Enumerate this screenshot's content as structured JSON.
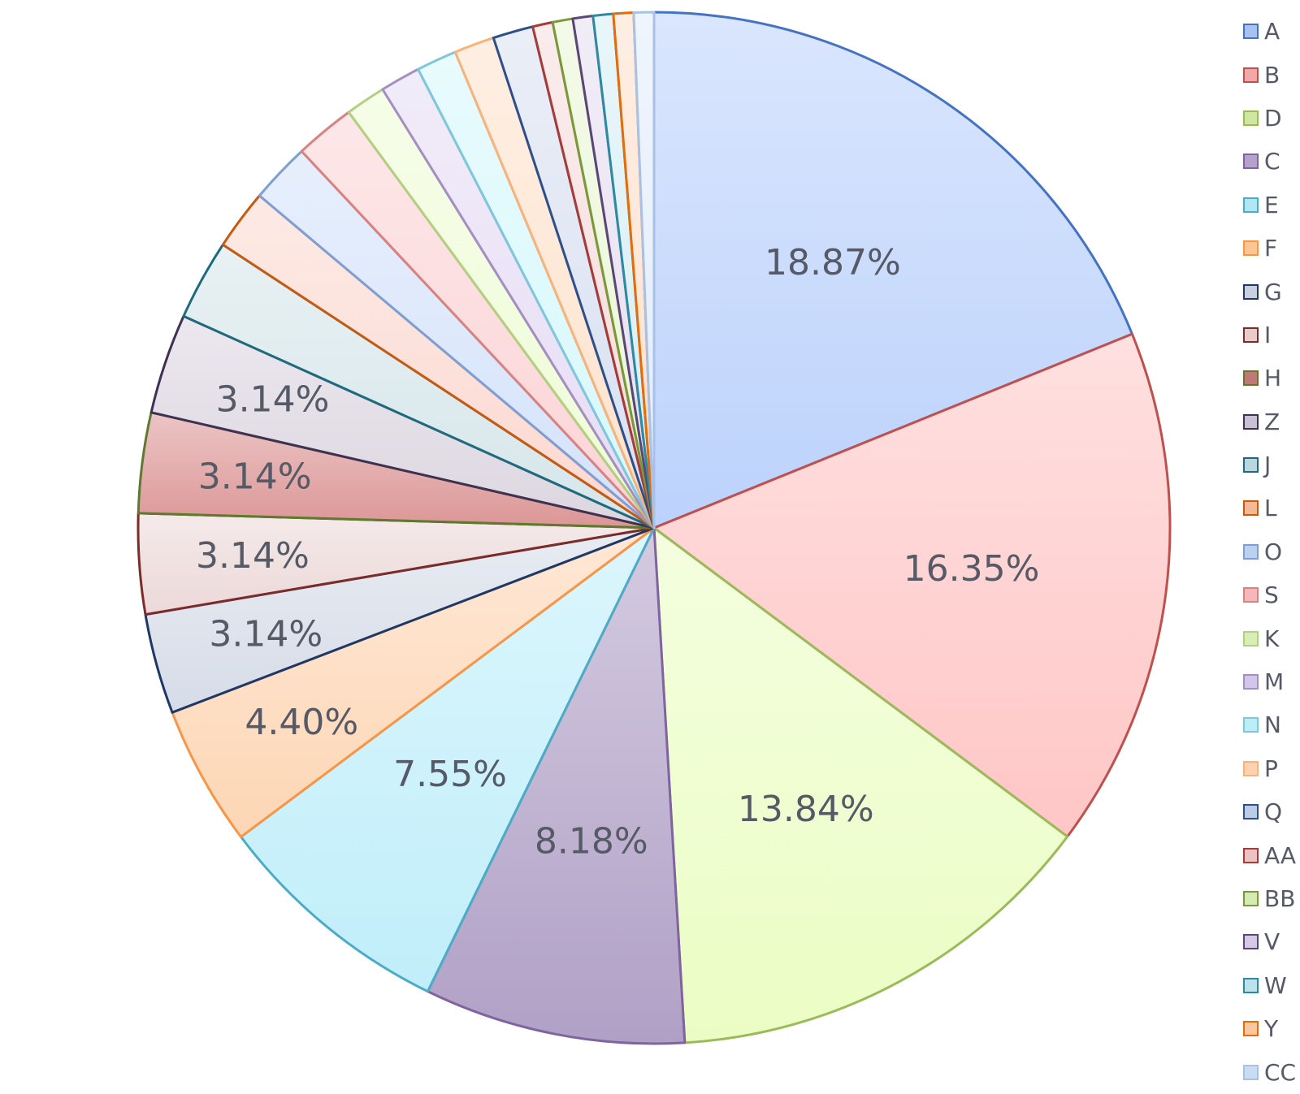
{
  "chart_data": {
    "type": "pie",
    "title": "",
    "legend_position": "right",
    "categories": [
      "A",
      "B",
      "D",
      "C",
      "E",
      "F",
      "G",
      "I",
      "H",
      "Z",
      "J",
      "L",
      "O",
      "S",
      "K",
      "M",
      "N",
      "P",
      "Q",
      "AA",
      "BB",
      "V",
      "W",
      "Y",
      "CC"
    ],
    "values": [
      18.87,
      16.35,
      13.84,
      8.18,
      7.55,
      4.4,
      3.14,
      3.14,
      3.14,
      3.14,
      2.52,
      1.89,
      1.89,
      1.89,
      1.26,
      1.26,
      1.26,
      1.26,
      1.26,
      0.63,
      0.63,
      0.63,
      0.63,
      0.63,
      0.63
    ],
    "labels": [
      "18.87%",
      "16.35%",
      "13.84%",
      "8.18%",
      "7.55%",
      "4.40%",
      "3.14%",
      "3.14%",
      "3.14%",
      "3.14%",
      "",
      "",
      "",
      "",
      "",
      "",
      "",
      "",
      "",
      "",
      "",
      "",
      "",
      "",
      ""
    ],
    "colors": [
      "#4472c4",
      "#c0504d",
      "#9bbb59",
      "#8064a2",
      "#4bacc6",
      "#f79646",
      "#1f3864",
      "#7b2c2a",
      "#5e7a2e",
      "#3f3151",
      "#1f6b7e",
      "#c55a11",
      "#7f9fd4",
      "#d9827f",
      "#b3cf80",
      "#a48fc3",
      "#7fc7da",
      "#f9b27a",
      "#2e4f8c",
      "#a83a37",
      "#7a9a3a",
      "#5b4679",
      "#2e8aa2",
      "#e46c0a",
      "#a9c1e6"
    ],
    "fills": [
      "#bcd2fc",
      "#ffc6c6",
      "#ebfdc4",
      "#b0a0c6",
      "#c0eefa",
      "#fdd6b4",
      "#d6dce8",
      "#ecd8d8",
      "#dc9696",
      "#dcd6e0",
      "#d6e6ea",
      "#fcd8d0",
      "#d4e2fa",
      "#fcd4d6",
      "#eefcd6",
      "#e6dcf4",
      "#d6f8fc",
      "#fde2cc",
      "#d8e0f0",
      "#f6dcdc",
      "#eaf6d6",
      "#e6dff0",
      "#d6eef4",
      "#fde0cc",
      "#e2ecfa"
    ],
    "legend_fills": [
      "#a6c2f0",
      "#f2a8a6",
      "#cfe6a0",
      "#b4a2cc",
      "#b0e6f2",
      "#fcc692",
      "#c8d0e0",
      "#e8cccc",
      "#bf7a78",
      "#c8c0d4",
      "#bcd6de",
      "#f6b894",
      "#bcd0f0",
      "#f4b8ba",
      "#d8eeb4",
      "#d2c6ea",
      "#bceef6",
      "#fcd2b0",
      "#bccce6",
      "#ecc2c2",
      "#d6eab4",
      "#d4cae6",
      "#bce2ec",
      "#fcc69e",
      "#cadcf4"
    ]
  }
}
